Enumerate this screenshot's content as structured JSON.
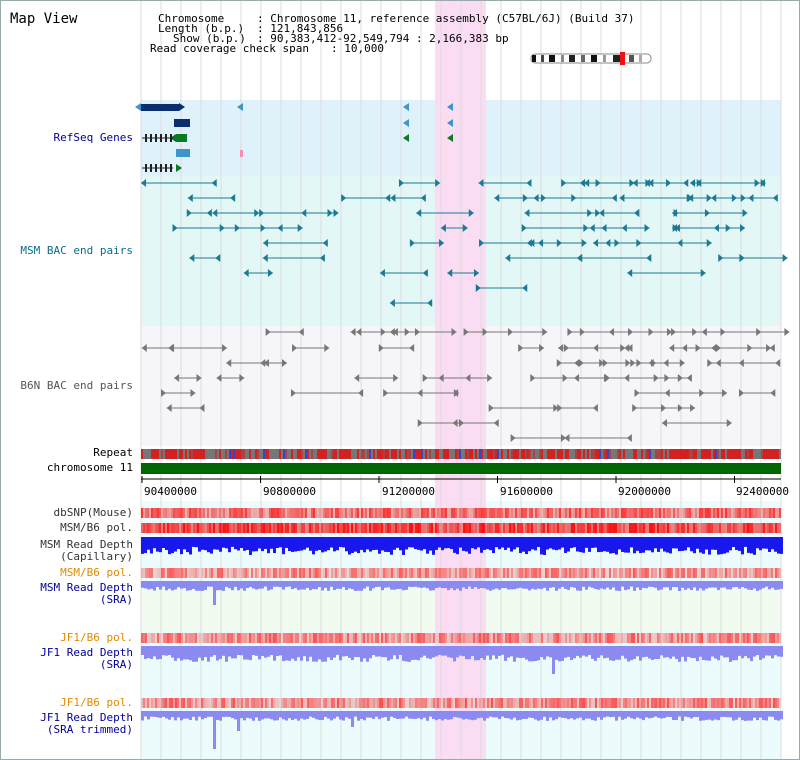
{
  "header": {
    "title": "Map View",
    "chromosome_label": "Chromosome",
    "chromosome_value": ": Chromosome 11, reference assembly (C57BL/6J) (Build 37)",
    "length_label": "Length (b.p.)",
    "length_value": ": 121,843,856",
    "show_label": "Show (b.p.)",
    "show_value": ": 90,383,412-92,549,794 : 2,166,383 bp",
    "coverage_label": "Read coverage check span",
    "coverage_value": ": 10,000"
  },
  "tracks": {
    "refseq": "RefSeq Genes",
    "msm_bac": "MSM BAC end pairs",
    "b6n_bac": "B6N BAC end pairs",
    "repeat": "Repeat",
    "chromosome": "chromosome 11",
    "dbsnp": "dbSNP(Mouse)",
    "msm_b6_pol": "MSM/B6 pol.",
    "msm_depth_cap_1": "MSM Read Depth",
    "msm_depth_cap_2": "(Capillary)",
    "msm_b6_pol_2": "MSM/B6 pol.",
    "msm_depth_sra_1": "MSM Read Depth",
    "msm_depth_sra_2": "(SRA)",
    "jf1_pol": "JF1/B6 pol.",
    "jf1_depth_1": "JF1 Read Depth",
    "jf1_depth_2": "(SRA)",
    "jf1_pol_2": "JF1/B6 pol.",
    "jf1_trim_1": "JF1 Read Depth",
    "jf1_trim_2": "(SRA trimmed)"
  },
  "axis": {
    "ticks": [
      "90400000",
      "90800000",
      "91200000",
      "91600000",
      "92000000",
      "92400000"
    ]
  },
  "colors": {
    "refseq_band": "#dff1fa",
    "msm_band": "#e3f7f7",
    "b6n_band": "#f6f6fa",
    "highlight": "#fadcf3",
    "chromosome_bar": "#006600",
    "msm_feature": "#1d7a94",
    "b6n_feature": "#777777",
    "refseq_navy": "#0a2d6e",
    "refseq_green": "#0b7a24",
    "refseq_teal": "#3d95c8",
    "msm_label": "#0c6d86",
    "b6n_label": "#555555",
    "refseq_label": "#000099",
    "pol_label_orange": "#e08a00",
    "depth_label_blue": "#000099",
    "depth_cap": "#1818ee",
    "depth_sra": "#8a8af0",
    "pol_red": "#e8262a"
  }
}
